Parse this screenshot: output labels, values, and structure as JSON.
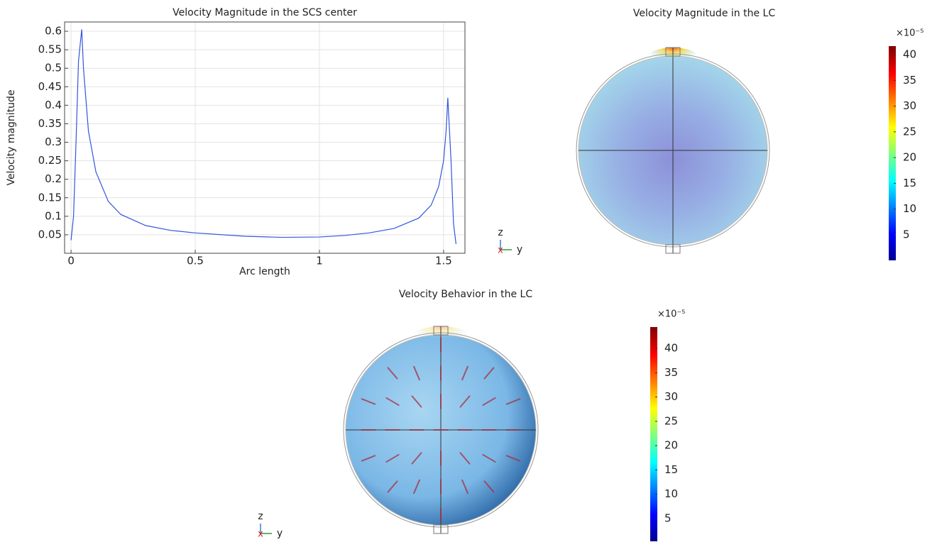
{
  "chart_data": [
    {
      "type": "line",
      "title": "Velocity Magnitude in the SCS center",
      "xlabel": "Arc length",
      "ylabel": "Velocity magnitude",
      "x": [
        0,
        0.01,
        0.02,
        0.03,
        0.043,
        0.05,
        0.07,
        0.1,
        0.15,
        0.2,
        0.3,
        0.4,
        0.5,
        0.7,
        0.85,
        1.0,
        1.1,
        1.2,
        1.3,
        1.4,
        1.45,
        1.48,
        1.5,
        1.51,
        1.517,
        1.53,
        1.54,
        1.55
      ],
      "values": [
        0.035,
        0.1,
        0.3,
        0.52,
        0.605,
        0.5,
        0.33,
        0.22,
        0.14,
        0.105,
        0.075,
        0.062,
        0.055,
        0.046,
        0.043,
        0.044,
        0.048,
        0.055,
        0.067,
        0.095,
        0.13,
        0.18,
        0.25,
        0.33,
        0.42,
        0.25,
        0.08,
        0.025
      ],
      "color": "#3355dd",
      "xlim": [
        -0.026,
        1.586
      ],
      "ylim": [
        0,
        0.625
      ],
      "xticks": [
        0,
        0.5,
        1,
        1.5
      ],
      "yticks": [
        0.05,
        0.1,
        0.15,
        0.2,
        0.25,
        0.3,
        0.35,
        0.4,
        0.45,
        0.5,
        0.55,
        0.6
      ],
      "grid": true,
      "axis_labels": [
        "z",
        "x",
        "y"
      ]
    },
    {
      "type": "heatmap",
      "title": "Velocity Magnitude in the LC",
      "colormap": "jet",
      "colorbar_multiplier": "×10⁻⁵",
      "colorbar_lim": [
        0.04,
        41.65
      ],
      "colorbar_ticks": [
        5,
        10,
        15,
        20,
        25,
        30,
        35,
        40
      ],
      "arrows": false
    },
    {
      "type": "heatmap",
      "title": "Velocity Behavior in the LC",
      "colormap": "jet",
      "colorbar_multiplier": "×10⁻⁵",
      "colorbar_lim": [
        0.33,
        44.4
      ],
      "colorbar_ticks": [
        5,
        10,
        15,
        20,
        25,
        30,
        35,
        40
      ],
      "arrows": true,
      "axis_labels": [
        "z",
        "x",
        "y"
      ]
    }
  ]
}
